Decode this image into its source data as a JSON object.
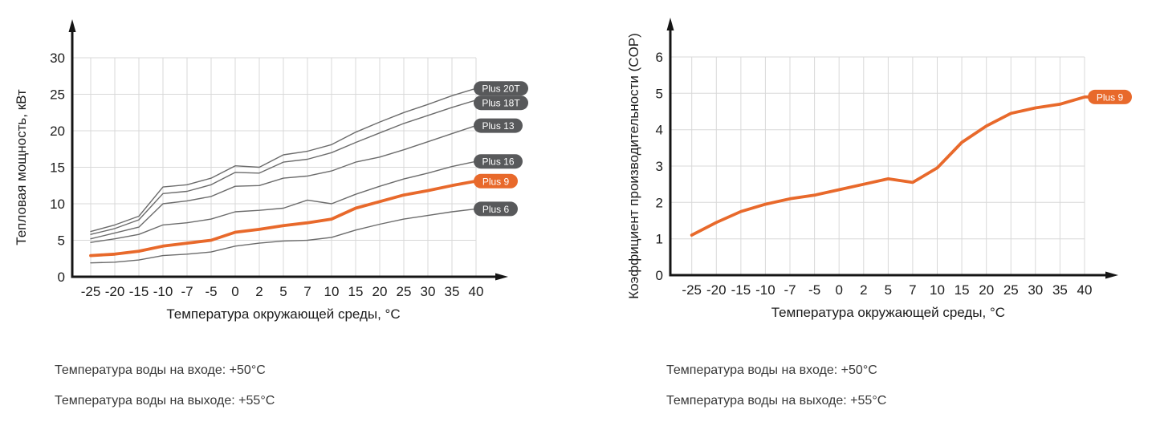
{
  "page": {
    "background": "#ffffff"
  },
  "colors": {
    "accent_orange": "#E8692B",
    "series_gray": "#6B6B6B",
    "badge_gray": "#58595B",
    "badge_text": "#ffffff",
    "grid": "#D8D8D8",
    "axis": "#151515",
    "tick_text": "#1C1C1C",
    "note_text": "#383838"
  },
  "chart_data": [
    {
      "type": "line",
      "title": "",
      "xlabel": "Температура окружающей среды, °C",
      "ylabel": "Тепловая мощность, кВт",
      "x_tick_labels": [
        "-25",
        "-20",
        "-15",
        "-10",
        "-7",
        "-5",
        "0",
        "2",
        "5",
        "7",
        "10",
        "15",
        "20",
        "25",
        "30",
        "35",
        "40"
      ],
      "y_ticks": [
        0,
        5,
        10,
        15,
        20,
        25,
        30
      ],
      "ylim": [
        0,
        30
      ],
      "grid": true,
      "legend_position": "line-end-badges",
      "series": [
        {
          "name": "Plus 20T",
          "highlight": false,
          "values": [
            6.2,
            7.1,
            8.3,
            12.3,
            12.6,
            13.5,
            15.2,
            15.0,
            16.7,
            17.2,
            18.1,
            19.8,
            21.2,
            22.5,
            23.6,
            24.8,
            25.8
          ]
        },
        {
          "name": "Plus 18T",
          "highlight": false,
          "values": [
            5.8,
            6.6,
            7.8,
            11.4,
            11.7,
            12.6,
            14.3,
            14.2,
            15.7,
            16.1,
            17.0,
            18.4,
            19.7,
            21.0,
            22.1,
            23.2,
            24.2
          ]
        },
        {
          "name": "Plus 13",
          "highlight": false,
          "values": [
            5.2,
            6.0,
            6.8,
            10.0,
            10.4,
            11.0,
            12.4,
            12.5,
            13.5,
            13.8,
            14.5,
            15.7,
            16.4,
            17.4,
            18.5,
            19.6,
            20.7
          ]
        },
        {
          "name": "Plus 16",
          "highlight": false,
          "values": [
            4.7,
            5.2,
            5.8,
            7.1,
            7.4,
            7.9,
            8.9,
            9.1,
            9.4,
            10.5,
            10.0,
            11.3,
            12.4,
            13.4,
            14.2,
            15.1,
            15.8
          ]
        },
        {
          "name": "Plus 9",
          "highlight": true,
          "values": [
            2.9,
            3.1,
            3.5,
            4.2,
            4.6,
            5.0,
            6.1,
            6.5,
            7.0,
            7.4,
            7.9,
            9.4,
            10.3,
            11.2,
            11.8,
            12.5,
            13.1
          ]
        },
        {
          "name": "Plus 6",
          "highlight": false,
          "values": [
            1.9,
            2.0,
            2.3,
            2.9,
            3.1,
            3.4,
            4.2,
            4.6,
            4.9,
            5.0,
            5.4,
            6.4,
            7.2,
            7.9,
            8.4,
            8.9,
            9.3
          ]
        }
      ]
    },
    {
      "type": "line",
      "title": "",
      "xlabel": "Температура окружающей среды, °C",
      "ylabel": "Коэффициент производительности (COP)",
      "x_tick_labels": [
        "-25",
        "-20",
        "-15",
        "-10",
        "-7",
        "-5",
        "0",
        "2",
        "5",
        "7",
        "10",
        "15",
        "20",
        "25",
        "30",
        "35",
        "40"
      ],
      "y_ticks": [
        0,
        1,
        2,
        3,
        4,
        5,
        6
      ],
      "ylim": [
        0,
        6
      ],
      "grid": true,
      "legend_position": "line-end-badges",
      "series": [
        {
          "name": "Plus 9",
          "highlight": true,
          "values": [
            1.1,
            1.45,
            1.75,
            1.95,
            2.1,
            2.2,
            2.35,
            2.5,
            2.65,
            2.55,
            2.95,
            3.65,
            4.1,
            4.45,
            4.6,
            4.7,
            4.9
          ]
        }
      ]
    }
  ],
  "notes": {
    "left": [
      "Температура воды на входе: +50°C",
      "Температура воды на выходе: +55°C"
    ],
    "right": [
      "Температура воды на входе: +50°C",
      "Температура воды на выходе: +55°C"
    ]
  }
}
